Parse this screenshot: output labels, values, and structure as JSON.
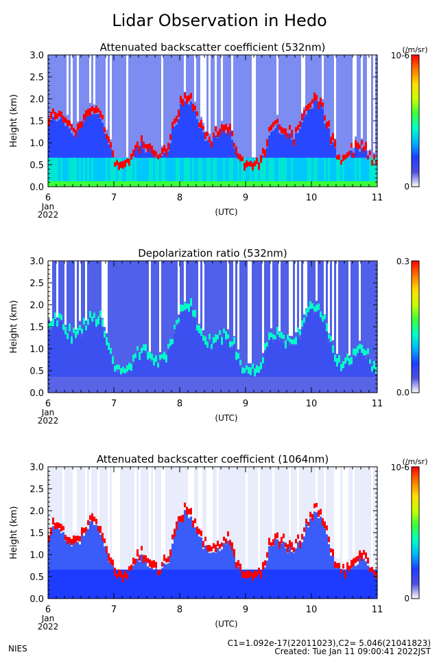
{
  "title": "Lidar Observation in Hedo",
  "footer": {
    "org": "NIES",
    "calibration": "C1=1.092e-17(22011023),C2= 5.046(21041823)",
    "created": "Created: Tue Jan 11 09:00:41 2022JST"
  },
  "chart_data": [
    {
      "type": "heatmap",
      "title": "Attenuated backscatter coefficient (532nm)",
      "ylabel": "Height (km)",
      "xlabel": "(UTC)",
      "x_ticks": [
        "6",
        "7",
        "8",
        "9",
        "10",
        "11"
      ],
      "x_first_sub": [
        "Jan",
        "2022"
      ],
      "x_range_days": [
        6,
        11
      ],
      "y_ticks": [
        "0.0",
        "0.5",
        "1.0",
        "1.5",
        "2.0",
        "2.5",
        "3.0"
      ],
      "ylim": [
        0,
        3
      ],
      "colorbar": {
        "unit": "(/m/sr)",
        "max_label": "10-6",
        "min_label": "0"
      }
    },
    {
      "type": "heatmap",
      "title": "Depolarization ratio (532nm)",
      "ylabel": "Height (km)",
      "xlabel": "(UTC)",
      "x_ticks": [
        "6",
        "7",
        "8",
        "9",
        "10",
        "11"
      ],
      "x_first_sub": [
        "Jan",
        "2022"
      ],
      "x_range_days": [
        6,
        11
      ],
      "y_ticks": [
        "0.0",
        "0.5",
        "1.0",
        "1.5",
        "2.0",
        "2.5",
        "3.0"
      ],
      "ylim": [
        0,
        3
      ],
      "colorbar": {
        "unit": "",
        "max_label": "0.3",
        "min_label": "0.0"
      }
    },
    {
      "type": "heatmap",
      "title": "Attenuated backscatter coefficient (1064nm)",
      "ylabel": "Height (km)",
      "xlabel": "(UTC)",
      "x_ticks": [
        "6",
        "7",
        "8",
        "9",
        "10",
        "11"
      ],
      "x_first_sub": [
        "Jan",
        "2022"
      ],
      "x_range_days": [
        6,
        11
      ],
      "y_ticks": [
        "0.0",
        "0.5",
        "1.0",
        "1.5",
        "2.0",
        "2.5",
        "3.0"
      ],
      "ylim": [
        0,
        3
      ],
      "colorbar": {
        "unit": "(/m/sr)",
        "max_label": "10-6",
        "min_label": "0"
      }
    }
  ],
  "colors": {
    "colormap": [
      "#ffffff",
      "#5050e0",
      "#1e3cff",
      "#00b4ff",
      "#00ffc8",
      "#3cff3c",
      "#c8ff00",
      "#ffdc00",
      "#ff7800",
      "#ff0000"
    ]
  }
}
